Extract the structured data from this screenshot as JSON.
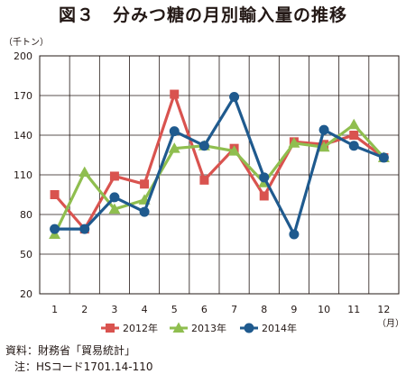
{
  "title": "図３　分みつ糖の月別輸入量の推移",
  "source_line1": "資料：財務省「貿易統計」",
  "source_line2": "注：HSコード1701.14-110",
  "chart_data": {
    "type": "line",
    "title": "図３　分みつ糖の月別輸入量の推移",
    "ylabel": "（千トン）",
    "xlabel": "（月）",
    "categories": [
      "1",
      "2",
      "3",
      "4",
      "5",
      "6",
      "7",
      "8",
      "9",
      "10",
      "11",
      "12"
    ],
    "y_ticks": [
      20,
      50,
      80,
      110,
      140,
      170,
      200
    ],
    "ylim": [
      20,
      200
    ],
    "grid": true,
    "legend_position": "bottom",
    "series": [
      {
        "name": "2012年",
        "color": "#d9534f",
        "marker": "square",
        "values": [
          95,
          69,
          109,
          103,
          171,
          106,
          130,
          94,
          135,
          133,
          140,
          123
        ]
      },
      {
        "name": "2013年",
        "color": "#8fbe4f",
        "marker": "triangle",
        "values": [
          65,
          112,
          84,
          91,
          130,
          132,
          128,
          104,
          134,
          131,
          148,
          123
        ]
      },
      {
        "name": "2014年",
        "color": "#1f5a8e",
        "marker": "circle",
        "values": [
          69,
          69,
          93,
          82,
          143,
          132,
          169,
          108,
          65,
          144,
          132,
          123
        ]
      }
    ]
  }
}
